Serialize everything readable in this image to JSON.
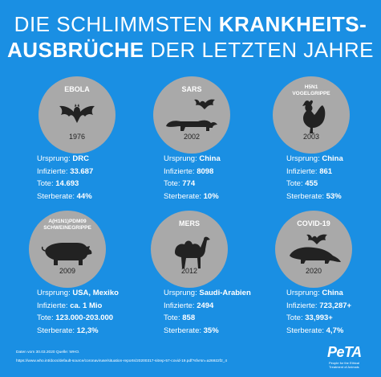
{
  "title": {
    "line1_normal": "DIE SCHLIMMSTEN ",
    "line1_bold": "KRANKHEITS-",
    "line2_bold": "AUSBRÜCHE",
    "line2_normal": " DER LETZTEN JAHRE"
  },
  "labels": {
    "origin": "Ursprung: ",
    "infected": "Infizierte: ",
    "deaths": "Tote: ",
    "mortality": "Sterberate: "
  },
  "outbreaks": [
    {
      "name": "EBOLA",
      "year": "1976",
      "origin": "DRC",
      "infected": "33.687",
      "deaths": "14.693",
      "mortality": "44%",
      "icon": "bat-icon"
    },
    {
      "name": "SARS",
      "year": "2002",
      "origin": "China",
      "infected": "8098",
      "deaths": "774",
      "mortality": "10%",
      "icon": "civet-and-bat-icon"
    },
    {
      "name": "H5N1\nVOGELGRIPPE",
      "year": "2003",
      "origin": "China",
      "infected": "861",
      "deaths": "455",
      "mortality": "53%",
      "icon": "rooster-icon"
    },
    {
      "name": "A(H1N1)PDM09\nSCHWEINEGRIPPE",
      "year": "2009",
      "origin": "USA, Mexiko",
      "infected": "ca. 1 Mio",
      "deaths": "123.000-203.000",
      "mortality": "12,3%",
      "icon": "pig-icon"
    },
    {
      "name": "MERS",
      "year": "2012",
      "origin": "Saudi-Arabien",
      "infected": "2494",
      "deaths": "858",
      "mortality": "35%",
      "icon": "camel-icon"
    },
    {
      "name": "COVID-19",
      "year": "2020",
      "origin": "China",
      "infected": "723,287+",
      "deaths": "33,993+",
      "mortality": "4,7%",
      "icon": "pangolin-and-bat-icon"
    }
  ],
  "footer": {
    "line1": "Daten vom 30.03.2020 Quelle: WHO.",
    "line2": "https://www.who.int/docs/default-source/coronaviruse/situation-reports/20200317-sitrep-57-covid-19.pdf?sfvrsn=a26922f2_4"
  },
  "logo": {
    "text": "PeTA",
    "subtext": "People for the Ethical Treatment of Animals"
  },
  "colors": {
    "background": "#1a8fe3",
    "circle": "#a9a9a9",
    "text": "#ffffff"
  }
}
